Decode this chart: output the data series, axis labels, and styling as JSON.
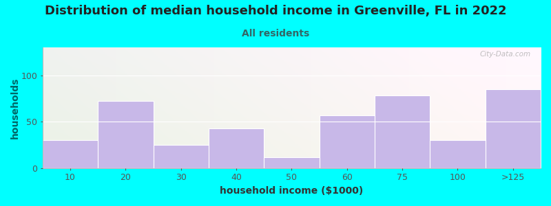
{
  "title": "Distribution of median household income in Greenville, FL in 2022",
  "subtitle": "All residents",
  "xlabel": "household income ($1000)",
  "ylabel": "households",
  "categories": [
    "10",
    "20",
    "30",
    "40",
    "50",
    "60",
    "75",
    "100",
    ">125"
  ],
  "values": [
    30,
    72,
    25,
    43,
    12,
    57,
    78,
    30,
    85
  ],
  "bar_color": "#C8B8E8",
  "background_outer": "#00FFFF",
  "ylim": [
    0,
    130
  ],
  "yticks": [
    0,
    50,
    100
  ],
  "title_fontsize": 13,
  "subtitle_fontsize": 10,
  "axis_label_fontsize": 10,
  "tick_fontsize": 9,
  "watermark_text": "City-Data.com",
  "title_color": "#222222",
  "subtitle_color": "#336666",
  "ylabel_color": "#006666",
  "xlabel_color": "#333333"
}
